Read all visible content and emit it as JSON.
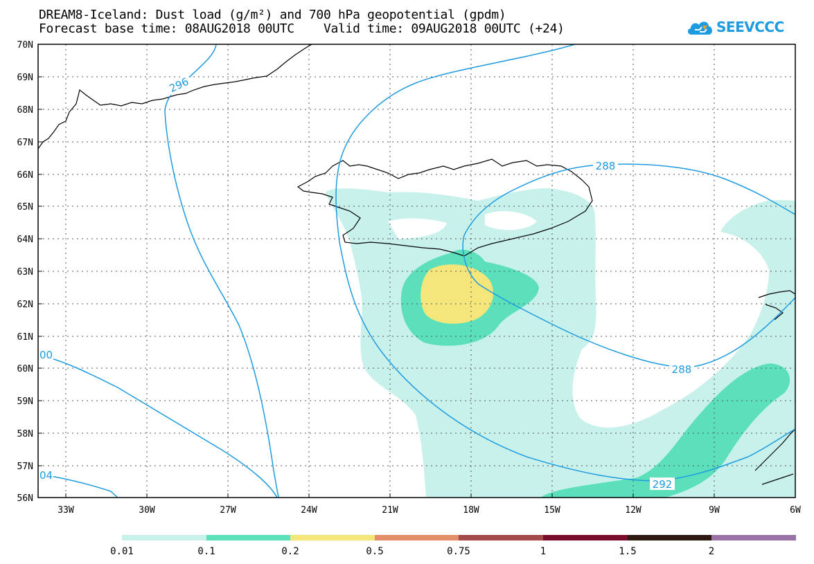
{
  "title": {
    "line1": "DREAM8-Iceland: Dust load (g/m²) and 700 hPa geopotential (gpdm)",
    "line2": "Forecast base time: 08AUG2018 00UTC    Valid time: 09AUG2018 00UTC (+24)"
  },
  "logo": {
    "text": "SEEVCCC",
    "color": "#1d9be0"
  },
  "map": {
    "lat_labels": [
      "70N",
      "69N",
      "68N",
      "67N",
      "66N",
      "65N",
      "64N",
      "63N",
      "62N",
      "61N",
      "60N",
      "59N",
      "58N",
      "57N",
      "56N"
    ],
    "lon_labels": [
      "33W",
      "30W",
      "27W",
      "24W",
      "21W",
      "18W",
      "15W",
      "12W",
      "9W",
      "6W"
    ],
    "contour_labels": [
      "296",
      "288",
      "288",
      "292",
      "00",
      "04"
    ],
    "contour_color": "#1d9be0"
  },
  "colorbar": {
    "colors": [
      "#c7f1ea",
      "#5ce0bc",
      "#f5e67c",
      "#e3906a",
      "#a3484c",
      "#7a0c2e",
      "#2e1a12",
      "#9a72a6"
    ],
    "labels": [
      "0.01",
      "0.1",
      "0.2",
      "0.5",
      "0.75",
      "1",
      "1.5",
      "2"
    ]
  }
}
